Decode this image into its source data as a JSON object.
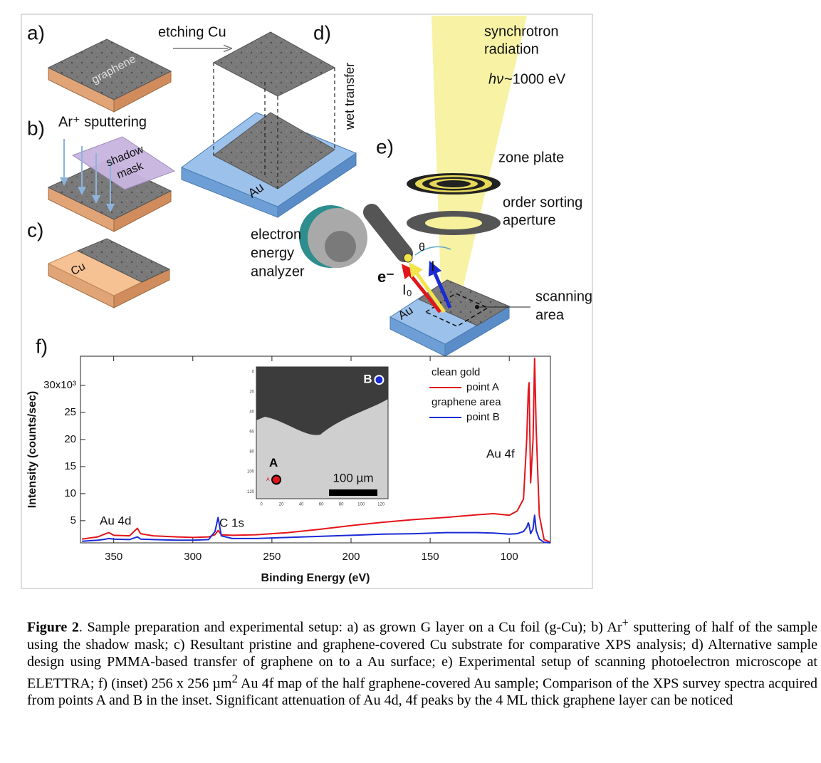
{
  "diagram": {
    "a_label": "a)",
    "b_label": "b)",
    "c_label": "c)",
    "d_label": "d)",
    "e_label": "e)",
    "etching": "etching Cu",
    "graphene": "graphene",
    "sputtering": "Ar⁺ sputtering",
    "mask_1": "shadow",
    "mask_2": "mask",
    "cu": "Cu",
    "au_d": "Au",
    "wet_transfer": "wet transfer",
    "synchrotron_1": "synchrotron",
    "synchrotron_2": "radiation",
    "hv_symbol": "hν",
    "hv_value": "~1000 eV",
    "zone_plate": "zone plate",
    "osa_1": "order sorting",
    "osa_2": "aperture",
    "analyzer_1": "electron",
    "analyzer_2": "energy",
    "analyzer_3": "analyzer",
    "electron": "e⁻",
    "i0": "I₀",
    "i": "I",
    "theta": "θ",
    "au_e": "Au",
    "scan_1": "scanning",
    "scan_2": "area"
  },
  "chart_data": {
    "type": "line",
    "panel_label": "f)",
    "x_label": "Binding Energy (eV)",
    "y_label": "Intensity (counts/sec)",
    "x": [
      370,
      360,
      355,
      353,
      350,
      340,
      335,
      333,
      325,
      310,
      300,
      290,
      286,
      284,
      282,
      275,
      260,
      240,
      220,
      200,
      180,
      160,
      140,
      120,
      110,
      100,
      95,
      91,
      89,
      88,
      87.5,
      86.5,
      85,
      84,
      83,
      81,
      78,
      74
    ],
    "series": [
      {
        "name": "point A",
        "color": "#e3151b",
        "values": [
          1.6,
          2.0,
          2.6,
          2.8,
          2.3,
          2.2,
          3.6,
          2.6,
          2.2,
          2.0,
          1.9,
          2.0,
          2.4,
          3.2,
          2.4,
          2.3,
          2.4,
          2.8,
          3.4,
          4.1,
          4.7,
          5.2,
          5.6,
          6.1,
          6.3,
          6.0,
          6.8,
          9,
          20,
          29,
          30.5,
          12,
          20,
          35,
          22,
          6,
          1.5,
          1.0
        ]
      },
      {
        "name": "point B",
        "color": "#1a2bd4",
        "values": [
          1.2,
          1.4,
          1.6,
          1.7,
          1.6,
          1.5,
          2.0,
          1.6,
          1.5,
          1.4,
          1.4,
          1.5,
          3,
          5.6,
          2.2,
          1.7,
          1.7,
          1.9,
          2.1,
          2.3,
          2.5,
          2.6,
          2.8,
          2.8,
          2.7,
          2.5,
          2.6,
          3,
          3.8,
          4.6,
          4.2,
          2.6,
          3.5,
          6.0,
          3.2,
          1.6,
          1.0,
          0.9
        ]
      }
    ],
    "legend_groups": [
      "clean gold",
      "graphene area"
    ],
    "annotations": [
      "Au 4d",
      "C 1s",
      "Au 4f"
    ],
    "xlim": [
      371,
      74
    ],
    "xticks": [
      350,
      300,
      250,
      200,
      150,
      100
    ],
    "ylim": [
      0.9,
      35.4
    ],
    "yticks": [
      5,
      10,
      15,
      20,
      25,
      {
        "value": 30,
        "label": "30x10³"
      }
    ],
    "inset": {
      "xlim": [
        -5,
        127
      ],
      "ylim": [
        -5,
        127
      ],
      "xticks": [
        0,
        20,
        40,
        60,
        80,
        100,
        120
      ],
      "yticks": [
        0,
        20,
        40,
        60,
        80,
        100,
        120
      ],
      "points": [
        {
          "label": "A",
          "x": 15,
          "y": 108,
          "color": "#e3151b"
        },
        {
          "label": "B",
          "x": 118,
          "y": 8,
          "color": "#1a2bd4"
        }
      ],
      "scale_bar": "100 µm"
    }
  },
  "caption": {
    "parts": [
      {
        "text": "Figure 2",
        "style": "bold"
      },
      {
        "text": ". Sample preparation and experimental setup: a) as grown G layer on a Cu foil (g-Cu); b) Ar"
      },
      {
        "text": "+",
        "style": "sup"
      },
      {
        "text": " sputtering of half of the sample using the shadow mask; c) Resultant pristine and graphene-covered Cu substrate for comparative XPS analysis; d) Alternative sample design using PMMA-based transfer  of graphene on to a Au surface; e) Experimental setup of scanning photoelectron microscope at ELETTRA; f) (inset) 256 x 256 µm"
      },
      {
        "text": "2",
        "style": "sup"
      },
      {
        "text": " Au 4f map of the half graphene-covered Au sample; Comparison of the XPS survey spectra acquired from points A and B in the inset. Significant attenuation of Au 4d, 4f peaks by the 4 ML thick graphene layer can be noticed"
      }
    ]
  }
}
